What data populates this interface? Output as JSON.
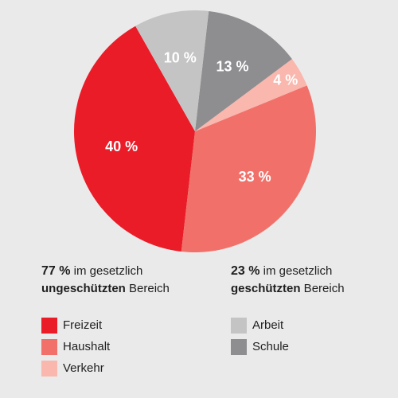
{
  "chart_data": {
    "type": "pie",
    "slices": [
      {
        "name": "Freizeit",
        "value": 40,
        "label": "40 %",
        "color": "#ea1c28"
      },
      {
        "name": "Haushalt",
        "value": 33,
        "label": "33 %",
        "color": "#f1716a"
      },
      {
        "name": "Verkehr",
        "value": 4,
        "label": "4 %",
        "color": "#f9b7ae"
      },
      {
        "name": "Schule",
        "value": 13,
        "label": "13 %",
        "color": "#8e8d8f"
      },
      {
        "name": "Arbeit",
        "value": 10,
        "label": "10 %",
        "color": "#c5c4c5"
      }
    ]
  },
  "groups": {
    "unprotected": {
      "percent": "77 %",
      "line1_rest": " im gesetzlich",
      "bold_word": "ungeschützten",
      "line2_rest": " Bereich"
    },
    "protected": {
      "percent": "23 %",
      "line1_rest": " im gesetzlich",
      "bold_word": "geschützten",
      "line2_rest": " Bereich"
    }
  },
  "legend": {
    "left": [
      {
        "label": "Freizeit",
        "color": "#ea1c28"
      },
      {
        "label": "Haushalt",
        "color": "#f1716a"
      },
      {
        "label": "Verkehr",
        "color": "#f9b7ae"
      }
    ],
    "right": [
      {
        "label": "Arbeit",
        "color": "#c5c4c5"
      },
      {
        "label": "Schule",
        "color": "#8e8d8f"
      }
    ]
  }
}
